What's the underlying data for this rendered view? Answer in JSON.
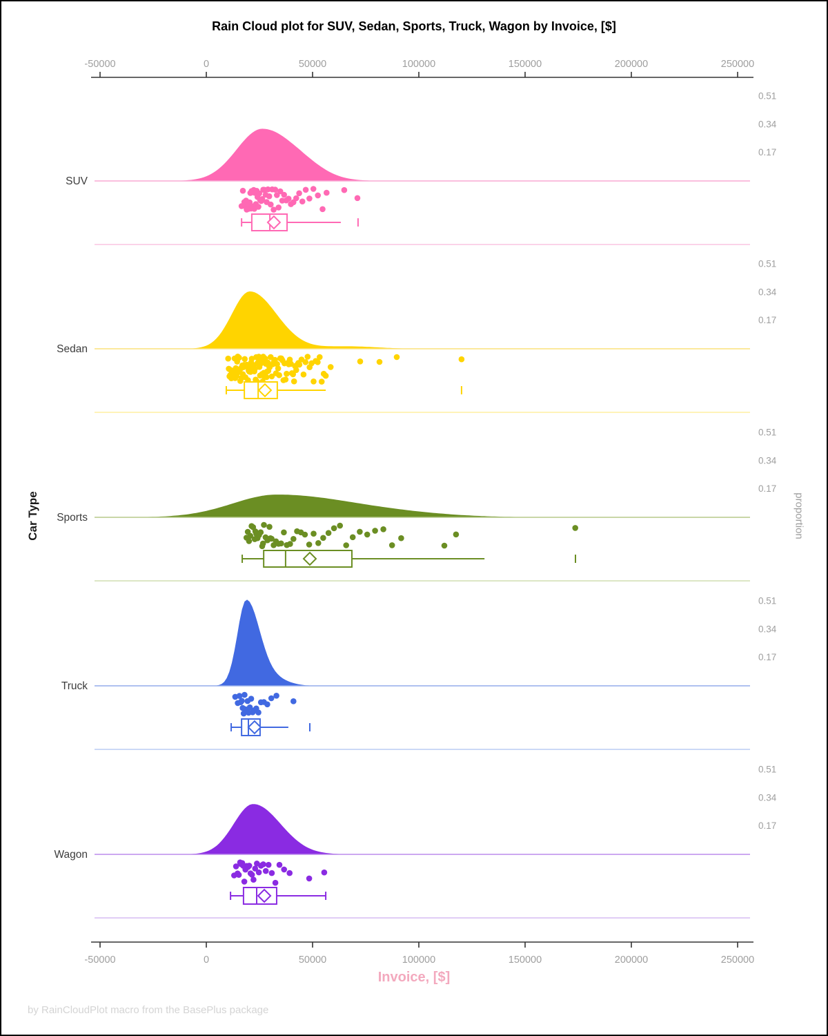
{
  "title": "Rain Cloud plot for SUV, Sedan, Sports, Truck, Wagon by Invoice, [$]",
  "footer": "by RainCloudPlot macro from the BasePlus package",
  "axes": {
    "x_label": "Invoice, [$]",
    "y_label": "Car Type",
    "y2_label": "proportion",
    "x_tick_labels": [
      "-50000",
      "0",
      "50000",
      "100000",
      "150000",
      "200000",
      "250000"
    ],
    "x_tick_values": [
      -50000,
      0,
      50000,
      100000,
      150000,
      200000,
      250000
    ],
    "proportion_tick_labels": [
      "0.51",
      "0.34",
      "0.17"
    ],
    "proportion_tick_values": [
      0.51,
      0.34,
      0.17
    ]
  },
  "colors": {
    "tick_label": "#9E9E9E",
    "category_label": "#3C3C3C",
    "axis_line": "#333333",
    "x_label_pink": "#F3A9BE",
    "footer": "#D4D4D4"
  },
  "chart_data": {
    "type": "raincloud",
    "x_range": [
      -54000,
      256000
    ],
    "categories": [
      "SUV",
      "Sedan",
      "Sports",
      "Truck",
      "Wagon"
    ],
    "series": [
      {
        "name": "SUV",
        "color": "#FF69B4",
        "baseline_color": "#F9A9D4",
        "separator_color": "#FBD3E8",
        "density": {
          "mu": 26300,
          "sd_left": 12000,
          "sd_right": 16000,
          "peak": 0.32,
          "bumps": [
            {
              "mu": 48000,
              "sd": 9000,
              "h": 0.02
            }
          ]
        },
        "box": {
          "q1": 21400,
          "median": 29900,
          "q3": 38000,
          "mean": 31800,
          "whisker_low": 16600,
          "whisker_high": 63300,
          "outliers": [
            71400
          ]
        },
        "points": [
          16600,
          17200,
          17500,
          17900,
          18300,
          18700,
          19000,
          19200,
          19500,
          19800,
          20100,
          20400,
          20700,
          21000,
          21300,
          21600,
          21900,
          22300,
          22600,
          22900,
          23300,
          23700,
          24100,
          24500,
          24900,
          25300,
          25800,
          26300,
          26800,
          27300,
          27900,
          28400,
          29000,
          29600,
          30300,
          31000,
          31700,
          32400,
          33200,
          34000,
          34800,
          35700,
          36600,
          37600,
          38700,
          39800,
          41000,
          42300,
          43700,
          45200,
          46800,
          48500,
          50400,
          52500,
          54700,
          56600,
          64900,
          71100
        ]
      },
      {
        "name": "Sedan",
        "color": "#FFD400",
        "baseline_color": "#FCE27A",
        "separator_color": "#FFF3B8",
        "density": {
          "mu": 20500,
          "sd_left": 8500,
          "sd_right": 12500,
          "peak": 0.353,
          "bumps": [
            {
              "mu": 67000,
              "sd": 13000,
              "h": 0.015
            }
          ]
        },
        "box": {
          "q1": 17900,
          "median": 24400,
          "q3": 33400,
          "mean": 27600,
          "whisker_low": 9400,
          "whisker_high": 56200,
          "outliers": [
            120100
          ]
        },
        "points": [
          10300,
          10600,
          10900,
          11200,
          11500,
          11800,
          12100,
          12400,
          12700,
          13000,
          13300,
          13600,
          13900,
          14200,
          14500,
          14800,
          15100,
          15400,
          15700,
          16000,
          16300,
          16600,
          16900,
          17200,
          17500,
          17800,
          18100,
          18400,
          18700,
          19000,
          19300,
          19600,
          19900,
          20200,
          20500,
          20800,
          21100,
          21400,
          21700,
          22000,
          22300,
          22600,
          22900,
          23200,
          23500,
          23800,
          24100,
          24400,
          24700,
          25000,
          25300,
          25600,
          25900,
          26200,
          26500,
          26800,
          27100,
          27400,
          27700,
          28000,
          28300,
          28600,
          28900,
          29200,
          29500,
          29800,
          30300,
          30800,
          31300,
          31800,
          32300,
          32800,
          33300,
          33800,
          34300,
          34800,
          35300,
          35800,
          36300,
          36800,
          37300,
          37800,
          38300,
          38800,
          39300,
          39800,
          40300,
          40800,
          41300,
          41800,
          42300,
          42800,
          43300,
          43800,
          44800,
          45750,
          46700,
          47650,
          48600,
          49550,
          50500,
          51450,
          52400,
          53350,
          54300,
          55250,
          56200,
          58500,
          72400,
          81500,
          89600,
          120100
        ]
      },
      {
        "name": "Sports",
        "color": "#6B8E23",
        "baseline_color": "#B5C98A",
        "separator_color": "#DCE6C5",
        "density": {
          "mu": 33400,
          "sd_left": 21000,
          "sd_right": 38000,
          "peak": 0.14,
          "bumps": [
            {
              "mu": 100000,
              "sd": 20000,
              "h": 0.006
            }
          ]
        },
        "box": {
          "q1": 27000,
          "median": 37300,
          "q3": 68500,
          "mean": 48700,
          "whisker_low": 16900,
          "whisker_high": 130900,
          "outliers": [
            173700
          ]
        },
        "points": [
          18900,
          19500,
          20100,
          20700,
          21300,
          22000,
          22800,
          23100,
          23500,
          24100,
          24800,
          25600,
          26300,
          26700,
          27100,
          27900,
          28800,
          29700,
          30200,
          30700,
          31700,
          32800,
          34000,
          35200,
          36500,
          37900,
          39400,
          41000,
          42700,
          44500,
          46400,
          48400,
          50500,
          52700,
          55000,
          57500,
          60100,
          62900,
          65800,
          68900,
          72200,
          75700,
          79400,
          83300,
          87400,
          91700,
          112000,
          117500,
          173600
        ]
      },
      {
        "name": "Truck",
        "color": "#4169E1",
        "baseline_color": "#93ACEC",
        "separator_color": "#CBD8F6",
        "density": {
          "mu": 18800,
          "sd_left": 4200,
          "sd_right": 6200,
          "peak": 0.52,
          "bumps": [
            {
              "mu": 31000,
              "sd": 7000,
              "h": 0.045
            }
          ]
        },
        "box": {
          "q1": 16600,
          "median": 19800,
          "q3": 25300,
          "mean": 22700,
          "whisker_low": 11700,
          "whisker_high": 38600,
          "outliers": [
            48700
          ]
        },
        "points": [
          13600,
          14800,
          15600,
          16200,
          16700,
          17100,
          17600,
          18000,
          18400,
          18900,
          19400,
          19900,
          20500,
          21100,
          21800,
          22600,
          23500,
          24500,
          25700,
          27100,
          28700,
          30600,
          33000,
          41000
        ]
      },
      {
        "name": "Wagon",
        "color": "#8A2BE2",
        "baseline_color": "#BC8CEC",
        "separator_color": "#E0CCF5",
        "density": {
          "mu": 22100,
          "sd_left": 9200,
          "sd_right": 12800,
          "peak": 0.31,
          "bumps": []
        },
        "box": {
          "q1": 17500,
          "median": 23700,
          "q3": 33100,
          "mean": 27300,
          "whisker_low": 11400,
          "whisker_high": 56200,
          "outliers": []
        },
        "points": [
          13100,
          14000,
          14700,
          15300,
          15900,
          16400,
          16900,
          17400,
          17900,
          18400,
          19000,
          19600,
          20200,
          20800,
          21500,
          22200,
          23000,
          23800,
          24700,
          25700,
          26800,
          28000,
          29300,
          30800,
          32500,
          34400,
          36600,
          39200,
          48400,
          55500
        ]
      }
    ]
  }
}
